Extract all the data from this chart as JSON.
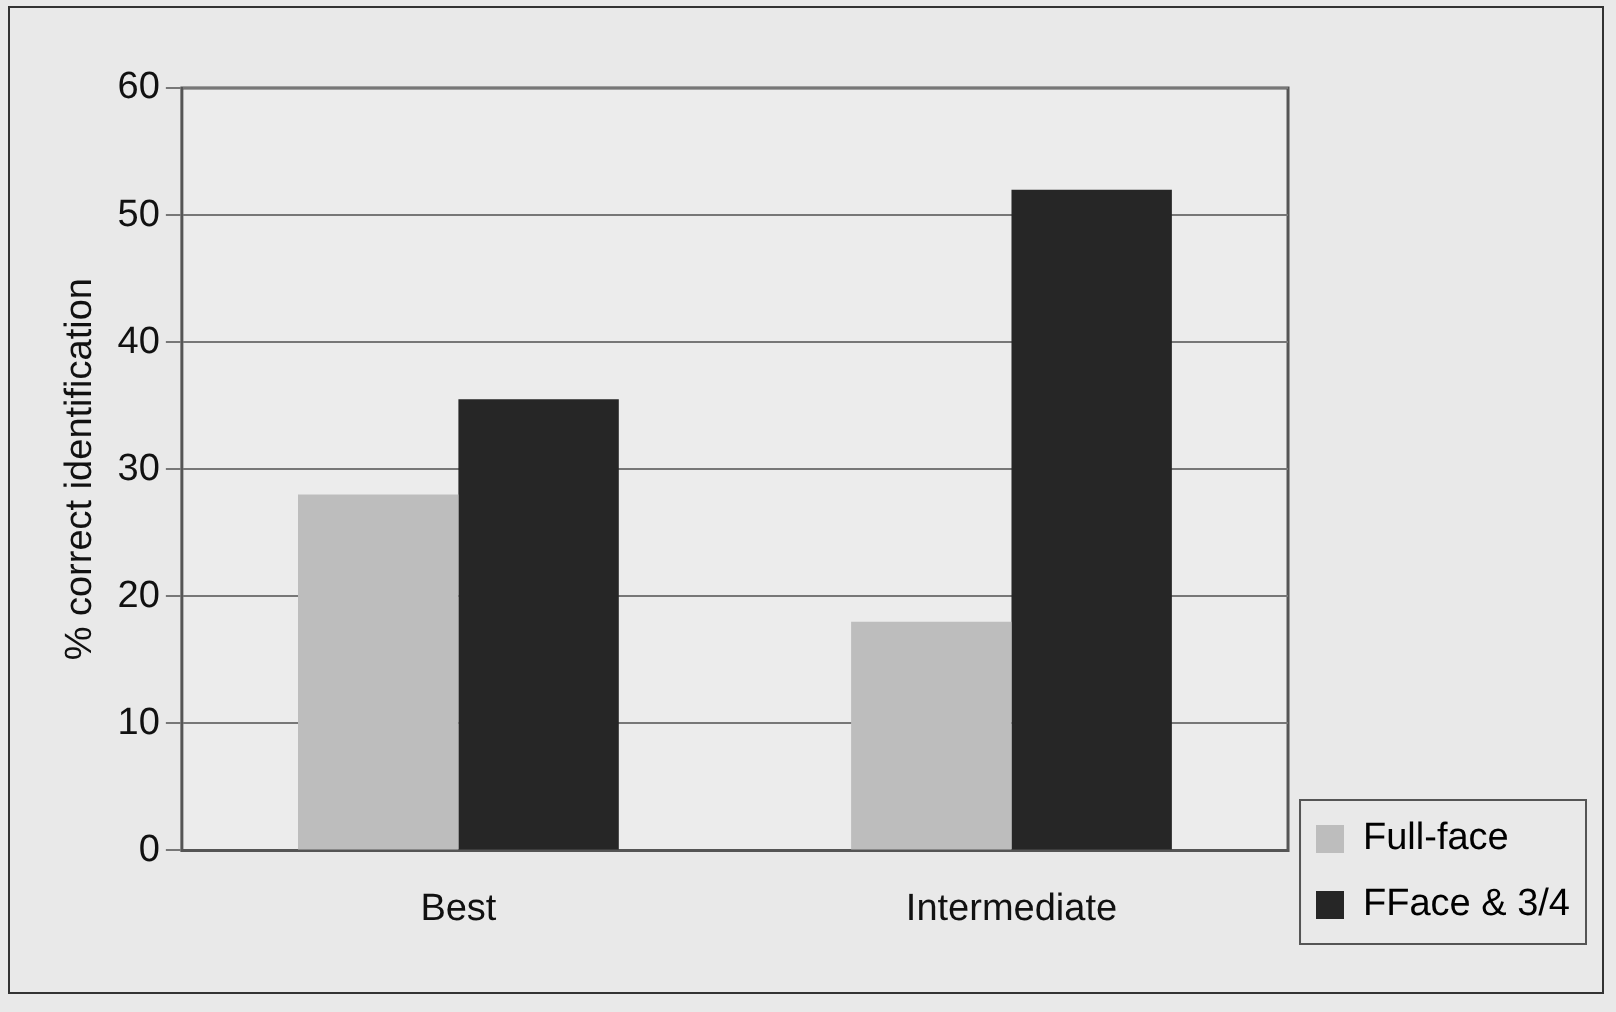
{
  "chart_data": {
    "type": "bar",
    "ylabel": "% correct identification",
    "categories": [
      "Best",
      "Intermediate"
    ],
    "series": [
      {
        "name": "Full-face",
        "color": "#bdbdbd",
        "values": [
          28,
          18
        ]
      },
      {
        "name": "FFace & 3/4",
        "color": "#262626",
        "values": [
          35.5,
          52
        ]
      }
    ],
    "ylim": [
      0,
      60
    ],
    "yticks": [
      0,
      10,
      20,
      30,
      40,
      50,
      60
    ],
    "grid": "y",
    "legend": "bottom right"
  }
}
